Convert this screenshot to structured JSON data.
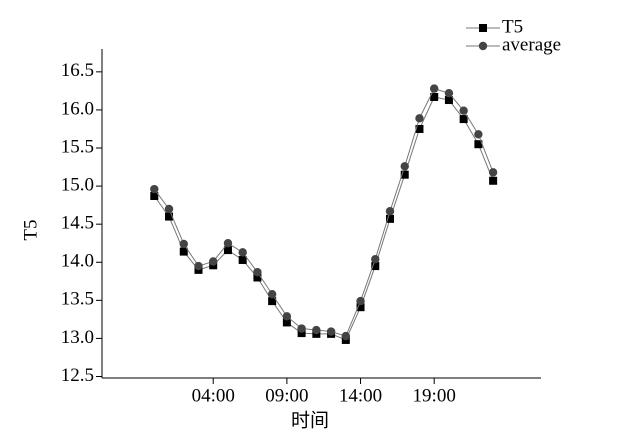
{
  "chart_data": {
    "type": "line",
    "x_label": "时间",
    "y_label": "T5",
    "x": [
      0,
      1,
      2,
      3,
      4,
      5,
      6,
      7,
      8,
      9,
      10,
      11,
      12,
      13,
      14,
      15,
      16,
      17,
      18,
      19,
      20,
      21,
      22,
      23
    ],
    "series": [
      {
        "name": "T5",
        "color": "#000000",
        "marker": "square",
        "values": [
          14.87,
          14.6,
          14.14,
          13.9,
          13.96,
          14.16,
          14.03,
          13.8,
          13.49,
          13.21,
          13.07,
          13.06,
          13.06,
          12.98,
          13.41,
          13.95,
          14.57,
          15.15,
          15.75,
          16.17,
          16.13,
          15.88,
          15.55,
          15.07
        ]
      },
      {
        "name": "average",
        "color": "#444444",
        "marker": "circle",
        "values": [
          14.96,
          14.7,
          14.24,
          13.95,
          14.01,
          14.25,
          14.13,
          13.87,
          13.58,
          13.29,
          13.13,
          13.11,
          13.09,
          13.03,
          13.49,
          14.04,
          14.67,
          15.26,
          15.89,
          16.28,
          16.22,
          15.99,
          15.68,
          15.18
        ]
      }
    ],
    "xlim": [
      -3.55,
      26.25
    ],
    "xticks": [
      {
        "value": 4,
        "label": "04:00"
      },
      {
        "value": 9,
        "label": "09:00"
      },
      {
        "value": 14,
        "label": "14:00"
      },
      {
        "value": 19,
        "label": "19:00"
      }
    ],
    "ylim": [
      12.5,
      16.8
    ],
    "yticks": [
      12.5,
      {
        "value": 13,
        "label": "13.0"
      },
      13.5,
      {
        "value": 14,
        "label": "14.0"
      },
      14.5,
      {
        "value": 15,
        "label": "15.0"
      },
      15.5,
      {
        "value": 16,
        "label": "16.0"
      },
      16.5
    ],
    "legend": "upper right",
    "grid": false
  }
}
